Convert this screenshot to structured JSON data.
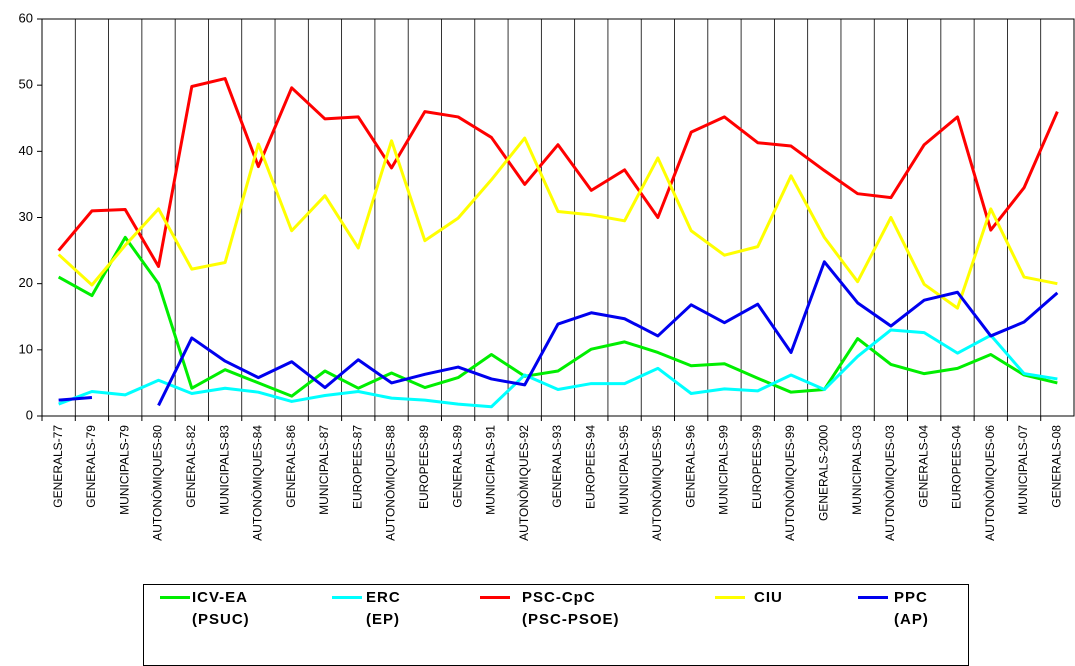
{
  "chart_data": {
    "type": "line",
    "categories": [
      "GENERALS-77",
      "GENERALS-79",
      "MUNICIPALS-79",
      "AUTONÒMIQUES-80",
      "GENERALS-82",
      "MUNICIPALS-83",
      "AUTONÒMIQUES-84",
      "GENERALS-86",
      "MUNICIPALS-87",
      "EUROPEES-87",
      "AUTONÒMIQUES-88",
      "EUROPEES-89",
      "GENERALS-89",
      "MUNICIPALS-91",
      "AUTONÒMIQUES-92",
      "GENERALS-93",
      "EUROPEES-94",
      "MUNICIPALS-95",
      "AUTONÒMIQUES-95",
      "GENERALS-96",
      "MUNICIPALS-99",
      "EUROPEES-99",
      "AUTONÒMIQUES-99",
      "GENERALS-2000",
      "MUNICIPALS-03",
      "AUTONÒMIQUES-03",
      "GENERALS-04",
      "EUROPEES-04",
      "AUTONÒMIQUES-06",
      "MUNICIPALS-07",
      "GENERALS-08"
    ],
    "series": [
      {
        "name": "ICV-EA\n(PSUC)",
        "color": "#00ee00",
        "values": [
          21,
          18.2,
          27,
          20,
          4.2,
          7,
          5,
          3,
          6.8,
          4.2,
          6.5,
          4.3,
          5.8,
          9.3,
          6,
          6.8,
          10.1,
          11.2,
          9.6,
          7.6,
          7.9,
          5.7,
          3.6,
          4,
          11.7,
          7.8,
          6.4,
          7.2,
          9.3,
          6.2,
          5
        ]
      },
      {
        "name": "ERC\n(EP)",
        "color": "#00ffff",
        "values": [
          1.8,
          3.7,
          3.2,
          5.4,
          3.4,
          4.2,
          3.6,
          2.2,
          3.1,
          3.7,
          2.7,
          2.4,
          1.8,
          1.4,
          6.2,
          4,
          4.9,
          4.9,
          7.2,
          3.4,
          4.1,
          3.8,
          6.2,
          4,
          9,
          13,
          12.6,
          9.5,
          12.2,
          6.4,
          5.6
        ]
      },
      {
        "name": "PSC-CpC\n(PSC-PSOE)",
        "color": "#ff0000",
        "values": [
          25,
          31,
          31.2,
          22.6,
          49.8,
          51,
          37.7,
          49.6,
          44.9,
          45.2,
          37.5,
          46,
          45.2,
          42.1,
          35,
          41,
          34.1,
          37.2,
          30,
          42.9,
          45.2,
          41.3,
          40.8,
          37.1,
          33.6,
          33,
          41,
          45.2,
          28.1,
          34.5,
          46
        ]
      },
      {
        "name": "CIU",
        "color": "#ffff00",
        "values": [
          24.4,
          19.8,
          25.8,
          31.3,
          22.2,
          23.2,
          41.1,
          28,
          33.3,
          25.4,
          41.6,
          26.5,
          29.9,
          35.7,
          42,
          30.9,
          30.4,
          29.5,
          39,
          28,
          24.3,
          25.6,
          36.3,
          27,
          20.3,
          30,
          19.9,
          16.3,
          31.3,
          21,
          20
        ]
      },
      {
        "name": "PPC\n(AP)",
        "color": "#0000ee",
        "values": [
          2.4,
          2.8,
          null,
          1.6,
          11.8,
          8.3,
          5.8,
          8.2,
          4.3,
          8.5,
          5,
          6.3,
          7.4,
          5.6,
          4.7,
          13.9,
          15.6,
          14.7,
          12.1,
          16.8,
          14.1,
          16.9,
          9.6,
          23.3,
          17.1,
          13.6,
          17.5,
          18.7,
          12.1,
          14.2,
          18.6
        ]
      }
    ],
    "ylim": [
      0,
      60
    ],
    "yticks": [
      0,
      10,
      20,
      30,
      40,
      50,
      60
    ],
    "grid": true
  }
}
